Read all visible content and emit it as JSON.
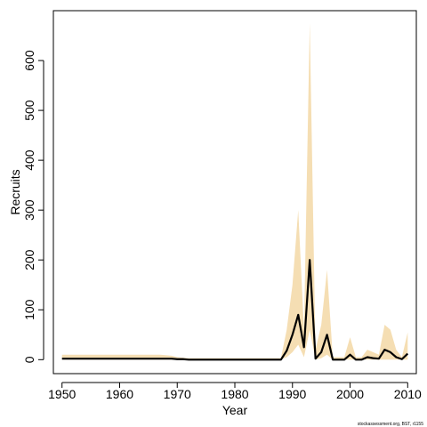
{
  "chart_data": {
    "type": "line",
    "xlabel": "Year",
    "ylabel": "Recruits",
    "xlim": [
      1948.5,
      2011.5
    ],
    "ylim": [
      -28,
      700
    ],
    "xticks": [
      1950,
      1960,
      1970,
      1980,
      1990,
      2000,
      2010
    ],
    "yticks": [
      0,
      100,
      200,
      300,
      400,
      500,
      600
    ],
    "grid": false,
    "colors": {
      "band": "#f5deb3",
      "line": "#000000"
    },
    "x": [
      1950,
      1951,
      1952,
      1953,
      1954,
      1955,
      1956,
      1957,
      1958,
      1959,
      1960,
      1961,
      1962,
      1963,
      1964,
      1965,
      1966,
      1967,
      1968,
      1969,
      1970,
      1971,
      1972,
      1973,
      1974,
      1975,
      1976,
      1977,
      1978,
      1979,
      1980,
      1981,
      1982,
      1983,
      1984,
      1985,
      1986,
      1987,
      1988,
      1989,
      1990,
      1991,
      1992,
      1993,
      1994,
      1995,
      1996,
      1997,
      1998,
      1999,
      2000,
      2001,
      2002,
      2003,
      2004,
      2005,
      2006,
      2007,
      2008,
      2009,
      2010
    ],
    "series": [
      {
        "values": [
          2,
          2,
          2,
          2,
          2,
          2,
          2,
          2,
          2,
          2,
          2,
          2,
          2,
          2,
          2,
          2,
          2,
          2,
          2,
          2,
          1,
          1,
          0,
          0,
          0,
          0,
          0,
          0,
          0,
          0,
          0,
          0,
          0,
          0,
          0,
          0,
          0,
          0,
          0,
          18,
          50,
          90,
          25,
          200,
          2,
          15,
          50,
          0,
          0,
          0,
          10,
          0,
          0,
          5,
          3,
          2,
          20,
          15,
          5,
          1,
          12
        ]
      }
    ],
    "band": {
      "lower": [
        0,
        0,
        0,
        0,
        0,
        0,
        0,
        0,
        0,
        0,
        0,
        0,
        0,
        0,
        0,
        0,
        0,
        0,
        0,
        0,
        0,
        0,
        0,
        0,
        0,
        0,
        0,
        0,
        0,
        0,
        0,
        0,
        0,
        0,
        0,
        0,
        0,
        0,
        0,
        5,
        15,
        30,
        5,
        60,
        0,
        3,
        10,
        0,
        0,
        0,
        0,
        0,
        0,
        0,
        0,
        0,
        0,
        0,
        0,
        0,
        0
      ],
      "upper": [
        10,
        10,
        10,
        10,
        10,
        10,
        10,
        10,
        10,
        10,
        10,
        10,
        10,
        10,
        10,
        10,
        10,
        10,
        9,
        8,
        5,
        4,
        3,
        3,
        3,
        3,
        3,
        3,
        3,
        3,
        3,
        3,
        3,
        3,
        3,
        3,
        3,
        3,
        3,
        60,
        150,
        300,
        60,
        675,
        20,
        70,
        180,
        5,
        5,
        5,
        45,
        5,
        5,
        20,
        15,
        10,
        70,
        60,
        20,
        5,
        55
      ]
    },
    "footnote": "stockassessment.org, BST, r1155"
  }
}
